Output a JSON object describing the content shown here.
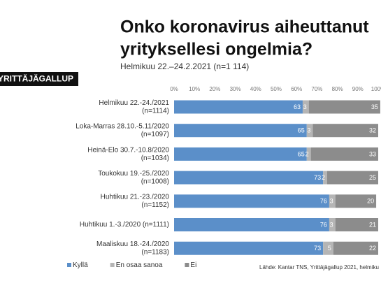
{
  "chart_data": {
    "type": "stacked-bar-horizontal",
    "title": [
      "Onko koronavirus aiheuttanut",
      "yrityksellesi ongelmia?"
    ],
    "subtitle": "Helmikuu 22.–24.2.2021 (n=1 114)",
    "badge": "YRITTÄJÄGALLUP",
    "source": "Lähde: Kantar TNS, Yrittäjägallup 2021, helmiku",
    "categories": [
      [
        "Helmikuu 22.-24./2021",
        "(n=1114)"
      ],
      [
        "Loka-Marras 28.10.-5.11/2020",
        "(n=1097)"
      ],
      [
        "Heinä-Elo 30.7.-10.8/2020",
        "(n=1034)"
      ],
      [
        "Toukokuu 19.-25./2020",
        "(n=1008)"
      ],
      [
        "Huhtikuu 21.-23./2020",
        "(n=1152)"
      ],
      [
        "Huhtikuu 1.-3./2020 (n=1111)"
      ],
      [
        "Maaliskuu 18.-24./2020",
        "(n=1183)"
      ]
    ],
    "series": [
      {
        "name": "Kyllä",
        "color": "#5b8fc9",
        "values": [
          63,
          65,
          65,
          73,
          76,
          76,
          73
        ]
      },
      {
        "name": "En osaa sanoa",
        "color": "#b5b5b5",
        "values": [
          3,
          3,
          2,
          2,
          3,
          3,
          5
        ]
      },
      {
        "name": "Ei",
        "color": "#8c8c8c",
        "values": [
          35,
          32,
          33,
          25,
          20,
          21,
          22
        ]
      }
    ],
    "xlim": [
      0,
      100
    ],
    "xticks": [
      {
        "value": 0,
        "label": "0%"
      },
      {
        "value": 10,
        "label": "10%"
      },
      {
        "value": 20,
        "label": "20%"
      },
      {
        "value": 30,
        "label": "30%"
      },
      {
        "value": 40,
        "label": "40%"
      },
      {
        "value": 50,
        "label": "50%"
      },
      {
        "value": 60,
        "label": "60%"
      },
      {
        "value": 70,
        "label": "70%"
      },
      {
        "value": 80,
        "label": "80%"
      },
      {
        "value": 90,
        "label": "90%"
      },
      {
        "value": 100,
        "label": "100%"
      }
    ],
    "grid": false
  }
}
